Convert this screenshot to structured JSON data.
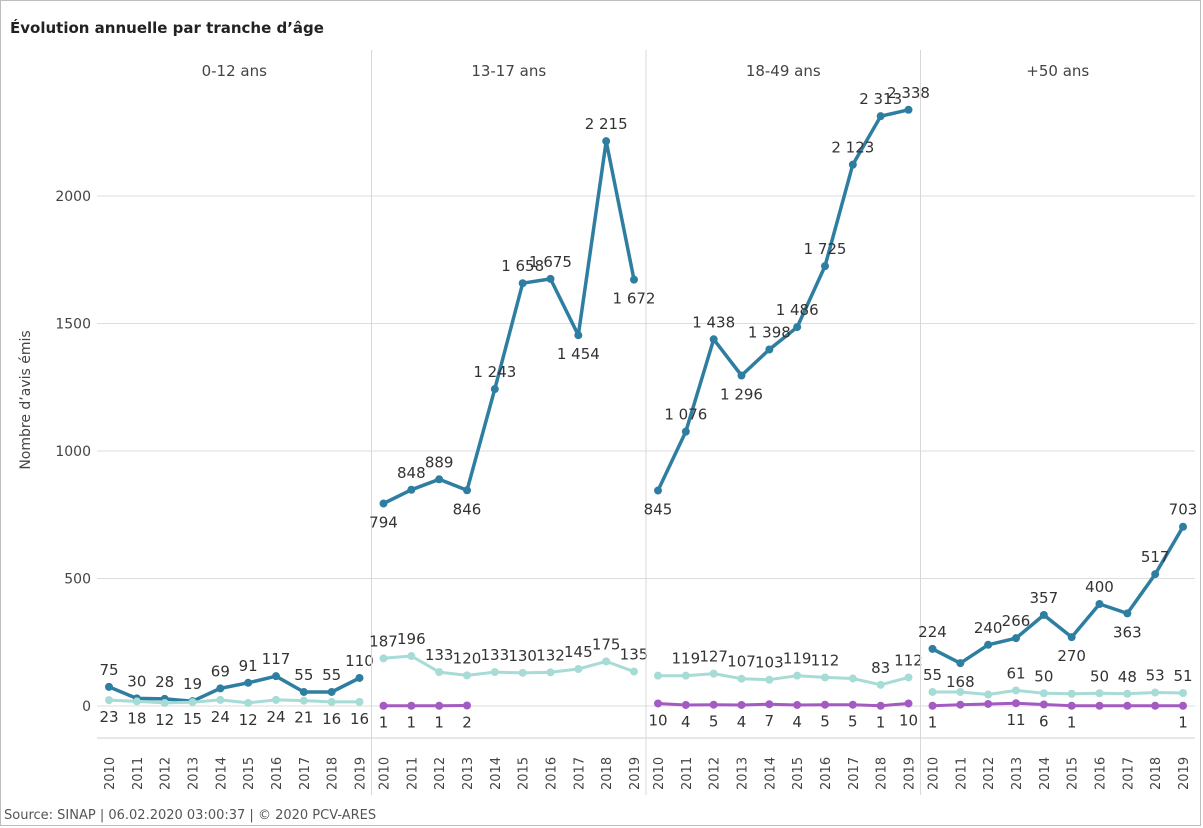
{
  "title": "Évolution annuelle par tranche d’âge",
  "footer": "Source: SINAP | 06.02.2020 03:00:37 | © 2020 PCV-ARES",
  "colors": {
    "main": "#2e7ea1",
    "light": "#a6dbd6",
    "purple": "#a35bc2",
    "grid": "#dddddd",
    "text": "#444444"
  },
  "chart_data": {
    "type": "line",
    "ylabel": "Nombre d’avis émis",
    "ylim": [
      0,
      2400
    ],
    "yticks": [
      0,
      500,
      1000,
      1500,
      2000
    ],
    "years": [
      "2010",
      "2011",
      "2012",
      "2013",
      "2014",
      "2015",
      "2016",
      "2017",
      "2018",
      "2019"
    ],
    "panels": [
      {
        "title": "0-12 ans",
        "series": [
          {
            "color": "main",
            "values": [
              75,
              30,
              28,
              19,
              69,
              91,
              117,
              55,
              55,
              110
            ],
            "labels": [
              "75",
              "30",
              "28",
              "19",
              "69",
              "91",
              "117",
              "55",
              "55",
              "110"
            ]
          },
          {
            "color": "light",
            "values": [
              23,
              18,
              12,
              15,
              24,
              12,
              24,
              21,
              16,
              16
            ],
            "labels": [
              "23",
              "18",
              "12",
              "15",
              "24",
              "12",
              "24",
              "21",
              "16",
              "16"
            ]
          }
        ]
      },
      {
        "title": "13-17 ans",
        "series": [
          {
            "color": "main",
            "values": [
              794,
              848,
              889,
              846,
              1243,
              1658,
              1675,
              1454,
              2215,
              1672
            ],
            "labels": [
              "794",
              "848",
              "889",
              "846",
              "1 243",
              "1 658",
              "1 675",
              "1 454",
              "2 215",
              "1 672"
            ]
          },
          {
            "color": "light",
            "values": [
              187,
              196,
              133,
              120,
              133,
              130,
              132,
              145,
              175,
              135
            ],
            "labels": [
              "187",
              "196",
              "133",
              "120",
              "133",
              "130",
              "132",
              "145",
              "175",
              "135"
            ]
          },
          {
            "color": "purple",
            "values": [
              1,
              1,
              1,
              2,
              null,
              null,
              null,
              null,
              null,
              null
            ],
            "labels": [
              "1",
              "1",
              "1",
              "2",
              "",
              "",
              "",
              "",
              "",
              ""
            ]
          }
        ]
      },
      {
        "title": "18-49 ans",
        "series": [
          {
            "color": "main",
            "values": [
              845,
              1076,
              1438,
              1296,
              1398,
              1486,
              1725,
              2123,
              2313,
              2338
            ],
            "labels": [
              "845",
              "1 076",
              "1 438",
              "1 296",
              "1 398",
              "1 486",
              "1 725",
              "2 123",
              "2 313",
              "2 338"
            ]
          },
          {
            "color": "light",
            "values": [
              119,
              119,
              127,
              107,
              103,
              119,
              112,
              108,
              83,
              112
            ],
            "labels": [
              "",
              "119",
              "127",
              "107",
              "103",
              "119",
              "112",
              "",
              "83",
              "112"
            ]
          },
          {
            "color": "purple",
            "values": [
              10,
              4,
              5,
              4,
              7,
              4,
              5,
              5,
              1,
              10
            ],
            "labels": [
              "10",
              "4",
              "5",
              "4",
              "7",
              "4",
              "5",
              "5",
              "1",
              "10"
            ]
          }
        ]
      },
      {
        "title": "+50 ans",
        "series": [
          {
            "color": "main",
            "values": [
              224,
              168,
              240,
              266,
              357,
              270,
              400,
              363,
              517,
              703
            ],
            "labels": [
              "224",
              "168",
              "240",
              "266",
              "357",
              "270",
              "400",
              "363",
              "517",
              "703"
            ]
          },
          {
            "color": "light",
            "values": [
              55,
              55,
              45,
              61,
              50,
              48,
              50,
              48,
              53,
              51
            ],
            "labels": [
              "55",
              "",
              "",
              "61",
              "50",
              "",
              "50",
              "48",
              "53",
              "51"
            ]
          },
          {
            "color": "purple",
            "values": [
              1,
              5,
              8,
              11,
              6,
              1,
              1,
              1,
              1,
              1
            ],
            "labels": [
              "1",
              "",
              "",
              "11",
              "6",
              "1",
              "",
              "",
              "",
              "1"
            ]
          }
        ]
      }
    ]
  }
}
